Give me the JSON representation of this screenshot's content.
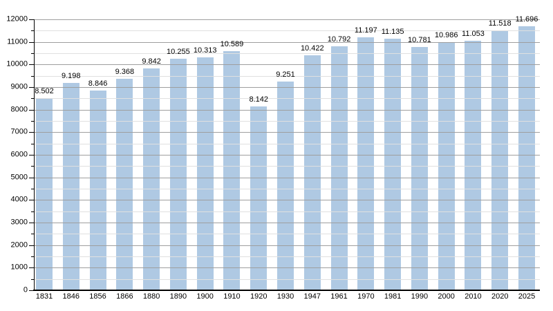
{
  "chart_data": {
    "type": "bar",
    "title": "",
    "xlabel": "",
    "ylabel": "",
    "categories": [
      "1831",
      "1846",
      "1856",
      "1866",
      "1880",
      "1890",
      "1900",
      "1910",
      "1920",
      "1930",
      "1947",
      "1961",
      "1970",
      "1981",
      "1990",
      "2000",
      "2010",
      "2020",
      "2025"
    ],
    "values": [
      8502,
      9198,
      8846,
      9368,
      9842,
      10255,
      10313,
      10589,
      8142,
      9251,
      10422,
      10792,
      11197,
      11135,
      10781,
      10986,
      11053,
      11518,
      11696
    ],
    "bar_labels": [
      "8.502",
      "9.198",
      "8.846",
      "9.368",
      "9.842",
      "10.255",
      "10.313",
      "10.589",
      "8.142",
      "9.251",
      "10.422",
      "10.792",
      "11.197",
      "11.135",
      "10.781",
      "10.986",
      "11.053",
      "11.518",
      "11.696"
    ],
    "ylim": [
      0,
      12000
    ],
    "y_major_step": 1000,
    "y_minor_step": 500,
    "y_tick_labels": [
      "0",
      "1000",
      "2000",
      "3000",
      "4000",
      "5000",
      "6000",
      "7000",
      "8000",
      "9000",
      "10000",
      "11000",
      "12000"
    ],
    "grid": "on",
    "legend": "none",
    "colors": {
      "bar": "#AFC9E3",
      "grid_major": "#9E9E9E",
      "grid_minor": "#E0E0E0",
      "axis": "#000000",
      "text": "#000000",
      "background": "#FFFFFF"
    }
  }
}
